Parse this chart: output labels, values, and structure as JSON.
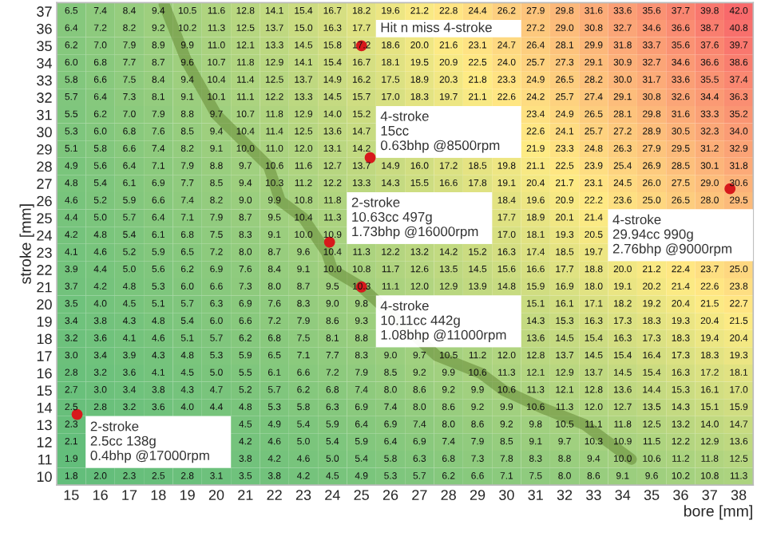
{
  "chart_data": {
    "type": "heatmap",
    "xlabel": "bore [mm]",
    "ylabel": "stroke [mm]",
    "xlim": [
      14.5,
      38.5
    ],
    "ylim": [
      9.5,
      37.5
    ],
    "xticks": [
      15,
      16,
      17,
      18,
      19,
      20,
      21,
      22,
      23,
      24,
      25,
      26,
      27,
      28,
      29,
      30,
      31,
      32,
      33,
      34,
      35,
      36,
      37,
      38
    ],
    "yticks": [
      37,
      36,
      35,
      34,
      33,
      32,
      31,
      30,
      29,
      28,
      27,
      26,
      25,
      24,
      23,
      22,
      21,
      20,
      19,
      18,
      17,
      16,
      15,
      14,
      13,
      12,
      11,
      10
    ],
    "colors": [
      "#63be7b",
      "#ffeb84",
      "#f8696b"
    ],
    "grid": false,
    "data_labels": true,
    "cells": [
      [
        6.5,
        7.4,
        8.4,
        9.4,
        10.5,
        11.6,
        12.8,
        14.1,
        15.4,
        16.7,
        18.2,
        19.6,
        21.2,
        22.8,
        24.4,
        26.2,
        27.9,
        29.8,
        31.6,
        33.6,
        35.6,
        37.7,
        39.8,
        42.0
      ],
      [
        6.4,
        7.2,
        8.2,
        9.2,
        10.2,
        11.3,
        12.5,
        13.7,
        15.0,
        16.3,
        17.7,
        null,
        null,
        null,
        null,
        null,
        27.2,
        29.0,
        30.8,
        32.7,
        34.6,
        36.6,
        38.7,
        40.8
      ],
      [
        6.2,
        7.0,
        7.9,
        8.9,
        9.9,
        11.0,
        12.1,
        13.3,
        14.5,
        15.8,
        17.2,
        18.6,
        20.0,
        21.6,
        23.1,
        24.7,
        26.4,
        28.1,
        29.9,
        31.8,
        33.7,
        35.6,
        37.6,
        39.7
      ],
      [
        6.0,
        6.8,
        7.7,
        8.7,
        9.6,
        10.7,
        11.8,
        12.9,
        14.1,
        15.4,
        16.7,
        18.1,
        19.5,
        20.9,
        22.5,
        24.0,
        25.7,
        27.3,
        29.1,
        30.9,
        32.7,
        34.6,
        36.6,
        38.6
      ],
      [
        5.8,
        6.6,
        7.5,
        8.4,
        9.4,
        10.4,
        11.4,
        12.5,
        13.7,
        14.9,
        16.2,
        17.5,
        18.9,
        20.3,
        21.8,
        23.3,
        24.9,
        26.5,
        28.2,
        30.0,
        31.7,
        33.6,
        35.5,
        37.4
      ],
      [
        5.7,
        6.4,
        7.3,
        8.1,
        9.1,
        10.1,
        11.1,
        12.2,
        13.3,
        14.5,
        15.7,
        17.0,
        18.3,
        19.7,
        21.1,
        22.6,
        24.2,
        25.7,
        27.4,
        29.1,
        30.8,
        32.6,
        34.4,
        36.3
      ],
      [
        5.5,
        6.2,
        7.0,
        7.9,
        8.8,
        9.7,
        10.7,
        11.8,
        12.9,
        14.0,
        15.2,
        null,
        null,
        null,
        null,
        null,
        23.4,
        24.9,
        26.5,
        28.1,
        29.8,
        31.6,
        33.3,
        35.2
      ],
      [
        5.3,
        6.0,
        6.8,
        7.6,
        8.5,
        9.4,
        10.4,
        11.4,
        12.5,
        13.6,
        14.7,
        null,
        null,
        null,
        null,
        null,
        22.6,
        24.1,
        25.7,
        27.2,
        28.9,
        30.5,
        32.3,
        34.0
      ],
      [
        5.1,
        5.8,
        6.6,
        7.4,
        8.2,
        9.1,
        10.0,
        11.0,
        12.0,
        13.1,
        14.2,
        null,
        null,
        null,
        null,
        null,
        21.9,
        23.3,
        24.8,
        26.3,
        27.9,
        29.5,
        31.2,
        32.9
      ],
      [
        4.9,
        5.6,
        6.4,
        7.1,
        7.9,
        8.8,
        9.7,
        10.6,
        11.6,
        12.7,
        13.7,
        14.9,
        16.0,
        17.2,
        18.5,
        19.8,
        21.1,
        22.5,
        23.9,
        25.4,
        26.9,
        28.5,
        30.1,
        31.8
      ],
      [
        4.8,
        5.4,
        6.1,
        6.9,
        7.7,
        8.5,
        9.4,
        10.3,
        11.2,
        12.2,
        13.3,
        14.3,
        15.5,
        16.6,
        17.8,
        19.1,
        20.4,
        21.7,
        23.1,
        24.5,
        26.0,
        27.5,
        29.0,
        30.6
      ],
      [
        4.6,
        5.2,
        5.9,
        6.6,
        7.4,
        8.2,
        9.0,
        9.9,
        10.8,
        11.8,
        null,
        null,
        null,
        null,
        null,
        18.4,
        19.6,
        20.9,
        22.2,
        23.6,
        25.0,
        26.5,
        28.0,
        29.5
      ],
      [
        4.4,
        5.0,
        5.7,
        6.4,
        7.1,
        7.9,
        8.7,
        9.5,
        10.4,
        11.3,
        null,
        null,
        null,
        null,
        null,
        17.7,
        18.9,
        20.1,
        21.4,
        null,
        null,
        null,
        null,
        null
      ],
      [
        4.2,
        4.8,
        5.4,
        6.1,
        6.8,
        7.5,
        8.3,
        9.1,
        10.0,
        10.9,
        null,
        null,
        null,
        null,
        null,
        17.0,
        18.1,
        19.3,
        20.5,
        null,
        null,
        null,
        null,
        null
      ],
      [
        4.1,
        4.6,
        5.2,
        5.9,
        6.5,
        7.2,
        8.0,
        8.7,
        9.6,
        10.4,
        11.3,
        12.2,
        13.2,
        14.2,
        15.2,
        16.3,
        17.4,
        18.5,
        19.7,
        null,
        null,
        null,
        null,
        null
      ],
      [
        3.9,
        4.4,
        5.0,
        5.6,
        6.2,
        6.9,
        7.6,
        8.4,
        9.1,
        10.0,
        10.8,
        11.7,
        12.6,
        13.5,
        14.5,
        15.6,
        16.6,
        17.7,
        18.8,
        20.0,
        21.2,
        22.4,
        23.7,
        25.0
      ],
      [
        3.7,
        4.2,
        4.8,
        5.3,
        6.0,
        6.6,
        7.3,
        8.0,
        8.7,
        9.5,
        10.3,
        11.1,
        12.0,
        12.9,
        13.9,
        14.8,
        15.9,
        16.9,
        18.0,
        19.1,
        20.2,
        21.4,
        22.6,
        23.8
      ],
      [
        3.5,
        4.0,
        4.5,
        5.1,
        5.7,
        6.3,
        6.9,
        7.6,
        8.3,
        9.0,
        9.8,
        null,
        null,
        null,
        null,
        null,
        15.1,
        16.1,
        17.1,
        18.2,
        19.2,
        20.4,
        21.5,
        22.7
      ],
      [
        3.4,
        3.8,
        4.3,
        4.8,
        5.4,
        6.0,
        6.6,
        7.2,
        7.9,
        8.6,
        9.3,
        null,
        null,
        null,
        null,
        null,
        14.3,
        15.3,
        16.3,
        17.3,
        18.3,
        19.3,
        20.4,
        21.5
      ],
      [
        3.2,
        3.6,
        4.1,
        4.6,
        5.1,
        5.7,
        6.2,
        6.8,
        7.5,
        8.1,
        8.8,
        null,
        null,
        null,
        null,
        null,
        13.6,
        14.5,
        15.4,
        16.3,
        17.3,
        18.3,
        19.4,
        20.4
      ],
      [
        3.0,
        3.4,
        3.9,
        4.3,
        4.8,
        5.3,
        5.9,
        6.5,
        7.1,
        7.7,
        8.3,
        9.0,
        9.7,
        10.5,
        11.2,
        12.0,
        12.8,
        13.7,
        14.5,
        15.4,
        16.4,
        17.3,
        18.3,
        19.3
      ],
      [
        2.8,
        3.2,
        3.6,
        4.1,
        4.5,
        5.0,
        5.5,
        6.1,
        6.6,
        7.2,
        7.9,
        8.5,
        9.2,
        9.9,
        10.6,
        11.3,
        12.1,
        12.9,
        13.7,
        14.5,
        15.4,
        16.3,
        17.2,
        18.1
      ],
      [
        2.7,
        3.0,
        3.4,
        3.8,
        4.3,
        4.7,
        5.2,
        5.7,
        6.2,
        6.8,
        7.4,
        8.0,
        8.6,
        9.2,
        9.9,
        10.6,
        11.3,
        12.1,
        12.8,
        13.6,
        14.4,
        15.3,
        16.1,
        17.0
      ],
      [
        2.5,
        2.8,
        3.2,
        3.6,
        4.0,
        4.4,
        4.8,
        5.3,
        5.8,
        6.3,
        6.9,
        7.4,
        8.0,
        8.6,
        9.2,
        9.9,
        10.6,
        11.3,
        12.0,
        12.7,
        13.5,
        14.3,
        15.1,
        15.9
      ],
      [
        2.3,
        null,
        null,
        null,
        null,
        null,
        4.5,
        4.9,
        5.4,
        5.9,
        6.4,
        6.9,
        7.4,
        8.0,
        8.6,
        9.2,
        9.8,
        10.5,
        11.1,
        11.8,
        12.5,
        13.2,
        14.0,
        14.7
      ],
      [
        2.1,
        null,
        null,
        null,
        null,
        null,
        4.2,
        4.6,
        5.0,
        5.4,
        5.9,
        6.4,
        6.9,
        7.4,
        7.9,
        8.5,
        9.1,
        9.7,
        10.3,
        10.9,
        11.5,
        12.2,
        12.9,
        13.6
      ],
      [
        1.9,
        null,
        null,
        null,
        null,
        null,
        3.8,
        4.2,
        4.6,
        5.0,
        5.4,
        5.8,
        6.3,
        6.8,
        7.3,
        7.8,
        8.3,
        8.8,
        9.4,
        10.0,
        10.6,
        11.2,
        11.8,
        12.5
      ],
      [
        1.8,
        2.0,
        2.3,
        2.5,
        2.8,
        3.1,
        3.5,
        3.8,
        4.2,
        4.5,
        4.9,
        5.3,
        5.7,
        6.2,
        6.6,
        7.1,
        7.5,
        8.0,
        8.6,
        9.1,
        9.6,
        10.2,
        10.8,
        11.3
      ]
    ],
    "cell_labels": [
      [
        "6.5",
        "7.4",
        "8.4",
        "9.4",
        "10.5",
        "11.6",
        "12.8",
        "14.1",
        "15.4",
        "16.7",
        "18.2",
        "19.6",
        "21.2",
        "22.8",
        "24.4",
        "26.2",
        "27.9",
        "29.8",
        "31.6",
        "33.6",
        "35.6",
        "37.7",
        "39.8",
        "42.0"
      ],
      [
        "6.4",
        "7.2",
        "8.2",
        "9.2",
        "10.2",
        "11.3",
        "12.5",
        "13.7",
        "15.0",
        "16.3",
        "17.7",
        null,
        null,
        null,
        null,
        null,
        "27.2",
        "29.0",
        "30.8",
        "32.7",
        "34.6",
        "36.6",
        "38.7",
        "40.8"
      ],
      [
        "6.2",
        "7.0",
        "7.9",
        "8.9",
        "9.9",
        "11.0",
        "12.1",
        "13.3",
        "14.5",
        "15.8",
        "17.2",
        "18.6",
        "20.0",
        "21.6",
        "23.1",
        "24.7",
        "26.4",
        "28.1",
        "29.9",
        "31.8",
        "33.7",
        "35.6",
        "37.6",
        "39.7"
      ],
      [
        "6.0",
        "6.8",
        "7.7",
        "8.7",
        "9.6",
        "10.7",
        "11.8",
        "12.9",
        "14.1",
        "15.4",
        "16.7",
        "18.1",
        "19.5",
        "20.9",
        "22.5",
        "24.0",
        "25.7",
        "27.3",
        "29.1",
        "30.9",
        "32.7",
        "34.6",
        "36.6",
        "38.6"
      ],
      [
        "5.8",
        "6.6",
        "7.5",
        "8.4",
        "9.4",
        "10.4",
        "11.4",
        "12.5",
        "13.7",
        "14.9",
        "16.2",
        "17.5",
        "18.9",
        "20.3",
        "21.8",
        "23.3",
        "24.9",
        "26.5",
        "28.2",
        "30.0",
        "31.7",
        "33.6",
        "35.5",
        "37.4"
      ],
      [
        "5.7",
        "6.4",
        "7.3",
        "8.1",
        "9.1",
        "10.1",
        "11.1",
        "12.2",
        "13.3",
        "14.5",
        "15.7",
        "17.0",
        "18.3",
        "19.7",
        "21.1",
        "22.6",
        "24.2",
        "25.7",
        "27.4",
        "29.1",
        "30.8",
        "32.6",
        "34.4",
        "36.3"
      ],
      [
        "5.5",
        "6.2",
        "7.0",
        "7.9",
        "8.8",
        "9.7",
        "10.7",
        "11.8",
        "12.9",
        "14.0",
        "15.2",
        null,
        null,
        null,
        null,
        null,
        "23.4",
        "24.9",
        "26.5",
        "28.1",
        "29.8",
        "31.6",
        "33.3",
        "35.2"
      ],
      [
        "5.3",
        "6.0",
        "6.8",
        "7.6",
        "8.5",
        "9.4",
        "10.4",
        "11.4",
        "12.5",
        "13.6",
        "14.7",
        null,
        null,
        null,
        null,
        null,
        "22.6",
        "24.1",
        "25.7",
        "27.2",
        "28.9",
        "30.5",
        "32.3",
        "34.0"
      ],
      [
        "5.1",
        "5.8",
        "6.6",
        "7.4",
        "8.2",
        "9.1",
        "10.0",
        "11.0",
        "12.0",
        "13.1",
        "14.2",
        null,
        null,
        null,
        null,
        null,
        "21.9",
        "23.3",
        "24.8",
        "26.3",
        "27.9",
        "29.5",
        "31.2",
        "32.9"
      ],
      [
        "4.9",
        "5.6",
        "6.4",
        "7.1",
        "7.9",
        "8.8",
        "9.7",
        "10.6",
        "11.6",
        "12.7",
        "13.7",
        "14.9",
        "16.0",
        "17.2",
        "18.5",
        "19.8",
        "21.1",
        "22.5",
        "23.9",
        "25.4",
        "26.9",
        "28.5",
        "30.1",
        "31.8"
      ],
      [
        "4.8",
        "5.4",
        "6.1",
        "6.9",
        "7.7",
        "8.5",
        "9.4",
        "10.3",
        "11.2",
        "12.2",
        "13.3",
        "14.3",
        "15.5",
        "16.6",
        "17.8",
        "19.1",
        "20.4",
        "21.7",
        "23.1",
        "24.5",
        "26.0",
        "27.5",
        "29.0",
        "30.6"
      ],
      [
        "4.6",
        "5.2",
        "5.9",
        "6.6",
        "7.4",
        "8.2",
        "9.0",
        "9.9",
        "10.8",
        "11.8",
        null,
        null,
        null,
        null,
        null,
        "18.4",
        "19.6",
        "20.9",
        "22.2",
        "23.6",
        "25.0",
        "26.5",
        "28.0",
        "29.5"
      ],
      [
        "4.4",
        "5.0",
        "5.7",
        "6.4",
        "7.1",
        "7.9",
        "8.7",
        "9.5",
        "10.4",
        "11.3",
        null,
        null,
        null,
        null,
        null,
        "17.7",
        "18.9",
        "20.1",
        "21.4",
        null,
        null,
        null,
        null,
        null
      ],
      [
        "4.2",
        "4.8",
        "5.4",
        "6.1",
        "6.8",
        "7.5",
        "8.3",
        "9.1",
        "10.0",
        "10.9",
        null,
        null,
        null,
        null,
        null,
        "17.0",
        "18.1",
        "19.3",
        "20.5",
        null,
        null,
        null,
        null,
        null
      ],
      [
        "4.1",
        "4.6",
        "5.2",
        "5.9",
        "6.5",
        "7.2",
        "8.0",
        "8.7",
        "9.6",
        "10.4",
        "11.3",
        "12.2",
        "13.2",
        "14.2",
        "15.2",
        "16.3",
        "17.4",
        "18.5",
        "19.7",
        null,
        null,
        null,
        null,
        null
      ],
      [
        "3.9",
        "4.4",
        "5.0",
        "5.6",
        "6.2",
        "6.9",
        "7.6",
        "8.4",
        "9.1",
        "10.0",
        "10.8",
        "11.7",
        "12.6",
        "13.5",
        "14.5",
        "15.6",
        "16.6",
        "17.7",
        "18.8",
        "20.0",
        "21.2",
        "22.4",
        "23.7",
        "25.0"
      ],
      [
        "3.7",
        "4.2",
        "4.8",
        "5.3",
        "6.0",
        "6.6",
        "7.3",
        "8.0",
        "8.7",
        "9.5",
        "10.3",
        "11.1",
        "12.0",
        "12.9",
        "13.9",
        "14.8",
        "15.9",
        "16.9",
        "18.0",
        "19.1",
        "20.2",
        "21.4",
        "22.6",
        "23.8"
      ],
      [
        "3.5",
        "4.0",
        "4.5",
        "5.1",
        "5.7",
        "6.3",
        "6.9",
        "7.6",
        "8.3",
        "9.0",
        "9.8",
        null,
        null,
        null,
        null,
        null,
        "15.1",
        "16.1",
        "17.1",
        "18.2",
        "19.2",
        "20.4",
        "21.5",
        "22.7"
      ],
      [
        "3.4",
        "3.8",
        "4.3",
        "4.8",
        "5.4",
        "6.0",
        "6.6",
        "7.2",
        "7.9",
        "8.6",
        "9.3",
        null,
        null,
        null,
        null,
        null,
        "14.3",
        "15.3",
        "16.3",
        "17.3",
        "18.3",
        "19.3",
        "20.4",
        "21.5"
      ],
      [
        "3.2",
        "3.6",
        "4.1",
        "4.6",
        "5.1",
        "5.7",
        "6.2",
        "6.8",
        "7.5",
        "8.1",
        "8.8",
        null,
        null,
        null,
        null,
        null,
        "13.6",
        "14.5",
        "15.4",
        "16.3",
        "17.3",
        "18.3",
        "19.4",
        "20.4"
      ],
      [
        "3.0",
        "3.4",
        "3.9",
        "4.3",
        "4.8",
        "5.3",
        "5.9",
        "6.5",
        "7.1",
        "7.7",
        "8.3",
        "9.0",
        "9.7",
        "10.5",
        "11.2",
        "12.0",
        "12.8",
        "13.7",
        "14.5",
        "15.4",
        "16.4",
        "17.3",
        "18.3",
        "19.3"
      ],
      [
        "2.8",
        "3.2",
        "3.6",
        "4.1",
        "4.5",
        "5.0",
        "5.5",
        "6.1",
        "6.6",
        "7.2",
        "7.9",
        "8.5",
        "9.2",
        "9.9",
        "10.6",
        "11.3",
        "12.1",
        "12.9",
        "13.7",
        "14.5",
        "15.4",
        "16.3",
        "17.2",
        "18.1"
      ],
      [
        "2.7",
        "3.0",
        "3.4",
        "3.8",
        "4.3",
        "4.7",
        "5.2",
        "5.7",
        "6.2",
        "6.8",
        "7.4",
        "8.0",
        "8.6",
        "9.2",
        "9.9",
        "10.6",
        "11.3",
        "12.1",
        "12.8",
        "13.6",
        "14.4",
        "15.3",
        "16.1",
        "17.0"
      ],
      [
        "2.5",
        "2.8",
        "3.2",
        "3.6",
        "4.0",
        "4.4",
        "4.8",
        "5.3",
        "5.8",
        "6.3",
        "6.9",
        "7.4",
        "8.0",
        "8.6",
        "9.2",
        "9.9",
        "10.6",
        "11.3",
        "12.0",
        "12.7",
        "13.5",
        "14.3",
        "15.1",
        "15.9"
      ],
      [
        "2.3",
        null,
        null,
        null,
        null,
        null,
        "4.5",
        "4.9",
        "5.4",
        "5.9",
        "6.4",
        "6.9",
        "7.4",
        "8.0",
        "8.6",
        "9.2",
        "9.8",
        "10.5",
        "11.1",
        "11.8",
        "12.5",
        "13.2",
        "14.0",
        "14.7"
      ],
      [
        "2.1",
        null,
        null,
        null,
        null,
        null,
        "4.2",
        "4.6",
        "5.0",
        "5.4",
        "5.9",
        "6.4",
        "6.9",
        "7.4",
        "7.9",
        "8.5",
        "9.1",
        "9.7",
        "10.3",
        "10.9",
        "11.5",
        "12.2",
        "12.9",
        "13.6"
      ],
      [
        "1.9",
        null,
        null,
        null,
        null,
        null,
        "3.8",
        "4.2",
        "4.6",
        "5.0",
        "5.4",
        "5.8",
        "6.3",
        "6.8",
        "7.3",
        "7.8",
        "8.3",
        "8.8",
        "9.4",
        "10.0",
        "10.6",
        "11.2",
        "11.8",
        "12.5"
      ],
      [
        "1.8",
        "2.0",
        "2.3",
        "2.5",
        "2.8",
        "3.1",
        "3.5",
        "3.8",
        "4.2",
        "4.5",
        "4.9",
        "5.3",
        "5.7",
        "6.2",
        "6.6",
        "7.1",
        "7.5",
        "8.0",
        "8.6",
        "9.1",
        "9.6",
        "10.2",
        "10.8",
        "11.3"
      ]
    ],
    "series": [
      {
        "type": "line",
        "color": "#6b8f3a",
        "x": [
          18.2,
          19,
          20,
          21.8,
          22.2,
          23,
          23.8,
          24,
          25,
          26.2,
          27.6,
          29.1,
          29.9,
          31.2,
          32.7,
          33.5,
          34.3
        ],
        "values": [
          37.4,
          34,
          31,
          28,
          26,
          25,
          23,
          22,
          21,
          null,
          17,
          16,
          15,
          14,
          13,
          12,
          11
        ],
        "value_labels": [
          null,
          null,
          null,
          null,
          null,
          null,
          null,
          null,
          null,
          null,
          null,
          null,
          null,
          null,
          null,
          null,
          null
        ]
      }
    ],
    "annotations": [
      {
        "text": "Hit n miss 4-stroke",
        "x": 25,
        "y": 35
      },
      {
        "text": "4-stroke\n15cc\n0.63bhp @8500rpm",
        "x": 25.3,
        "y": 28.5
      },
      {
        "text": "2-stroke\n10.63cc 497g\n1.73bhp @16000rpm",
        "x": 23.9,
        "y": 23.6
      },
      {
        "text": "4-stroke\n29.94cc 990g\n2.76bhp @9000rpm",
        "x": 37.7,
        "y": 26.7
      },
      {
        "text": "4-stroke\n10.11cc 442g\n1.08bhp @11000rpm",
        "x": 25,
        "y": 21
      },
      {
        "text": "2-stroke\n2.5cc 138g\n0.4bhp @17000rpm",
        "x": 15.2,
        "y": 13.6
      }
    ]
  }
}
